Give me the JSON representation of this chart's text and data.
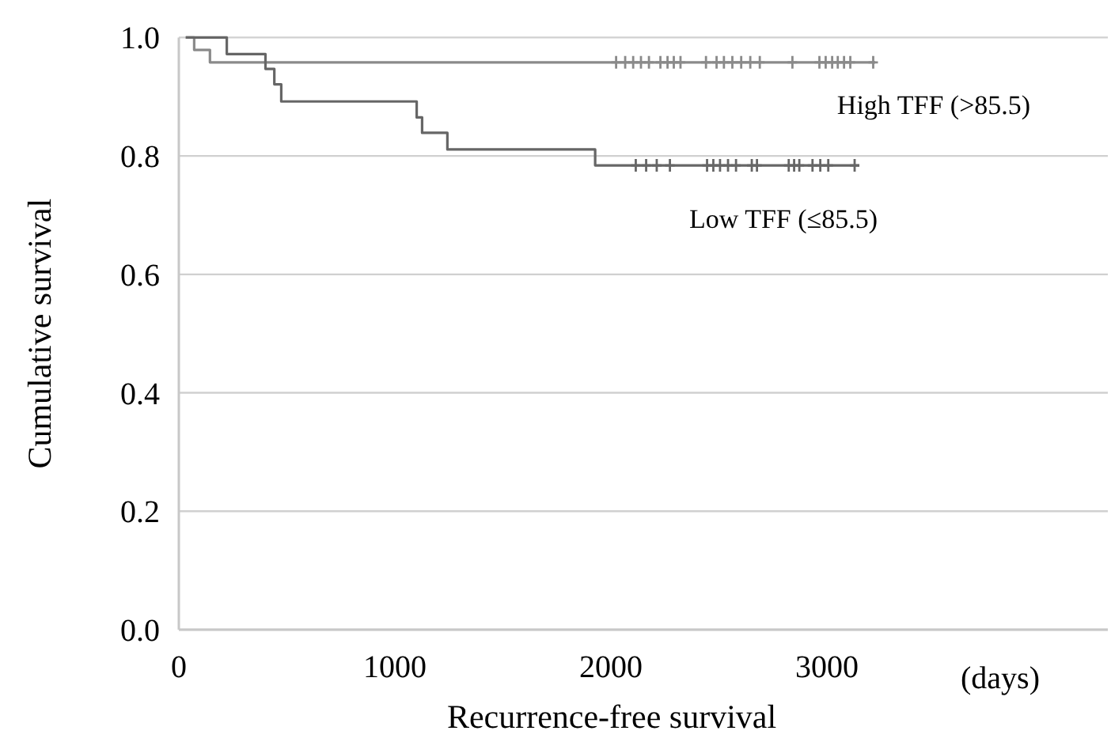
{
  "chart_data": {
    "type": "step",
    "xlabel": "Recurrence-free survival",
    "ylabel": "Cumulative survival",
    "xlim": [
      0,
      4300
    ],
    "xticks": [
      0,
      1000,
      2000,
      3000
    ],
    "ylim": [
      0,
      1.0
    ],
    "yticks": [
      {
        "value": 0,
        "label": "0.0"
      },
      {
        "value": 0.2,
        "label": "0.2"
      },
      {
        "value": 0.4,
        "label": "0.4"
      },
      {
        "value": 0.6,
        "label": "0.6"
      },
      {
        "value": 0.8,
        "label": "0.8"
      },
      {
        "value": 1.0,
        "label": "1.0"
      }
    ],
    "grid": "y",
    "line_style": "solid",
    "series": [
      {
        "color": "#8a8a8a",
        "x": [
          32,
          71,
          144,
          3223
        ],
        "values": [
          1.0,
          0.979,
          0.958,
          0.958
        ]
      },
      {
        "color": "#666666",
        "x": [
          32,
          222,
          401,
          442,
          474,
          1101,
          1126,
          1243,
          1927,
          3150
        ],
        "values": [
          1.0,
          0.972,
          0.947,
          0.921,
          0.892,
          0.865,
          0.839,
          0.811,
          0.784,
          0.784
        ]
      },
      {
        "type": "scatter",
        "marker": "cross",
        "color": "#8a8a8a",
        "x": [
          2024,
          2066,
          2103,
          2139,
          2176,
          2229,
          2262,
          2291,
          2322,
          2440,
          2489,
          2523,
          2562,
          2603,
          2645,
          2689,
          2840,
          2965,
          2994,
          3024,
          3050,
          3079,
          3108,
          3214
        ],
        "values": [
          0.958,
          0.958,
          0.958,
          0.958,
          0.958,
          0.958,
          0.958,
          0.958,
          0.958,
          0.958,
          0.958,
          0.958,
          0.958,
          0.958,
          0.958,
          0.958,
          0.958,
          0.958,
          0.958,
          0.958,
          0.958,
          0.958,
          0.958,
          0.958
        ]
      },
      {
        "type": "scatter",
        "marker": "cross",
        "color": "#666666",
        "x": [
          2115,
          2163,
          2212,
          2273,
          2445,
          2474,
          2505,
          2542,
          2579,
          2652,
          2676,
          2823,
          2848,
          2872,
          2933,
          2969,
          3006,
          3128
        ],
        "values": [
          0.784,
          0.784,
          0.784,
          0.784,
          0.784,
          0.784,
          0.784,
          0.784,
          0.784,
          0.784,
          0.784,
          0.784,
          0.784,
          0.784,
          0.784,
          0.784,
          0.784,
          0.784
        ]
      }
    ],
    "annotations": [
      "High TFF (>85.5)",
      "Low TFF (≤85.5)",
      "(days)"
    ]
  }
}
